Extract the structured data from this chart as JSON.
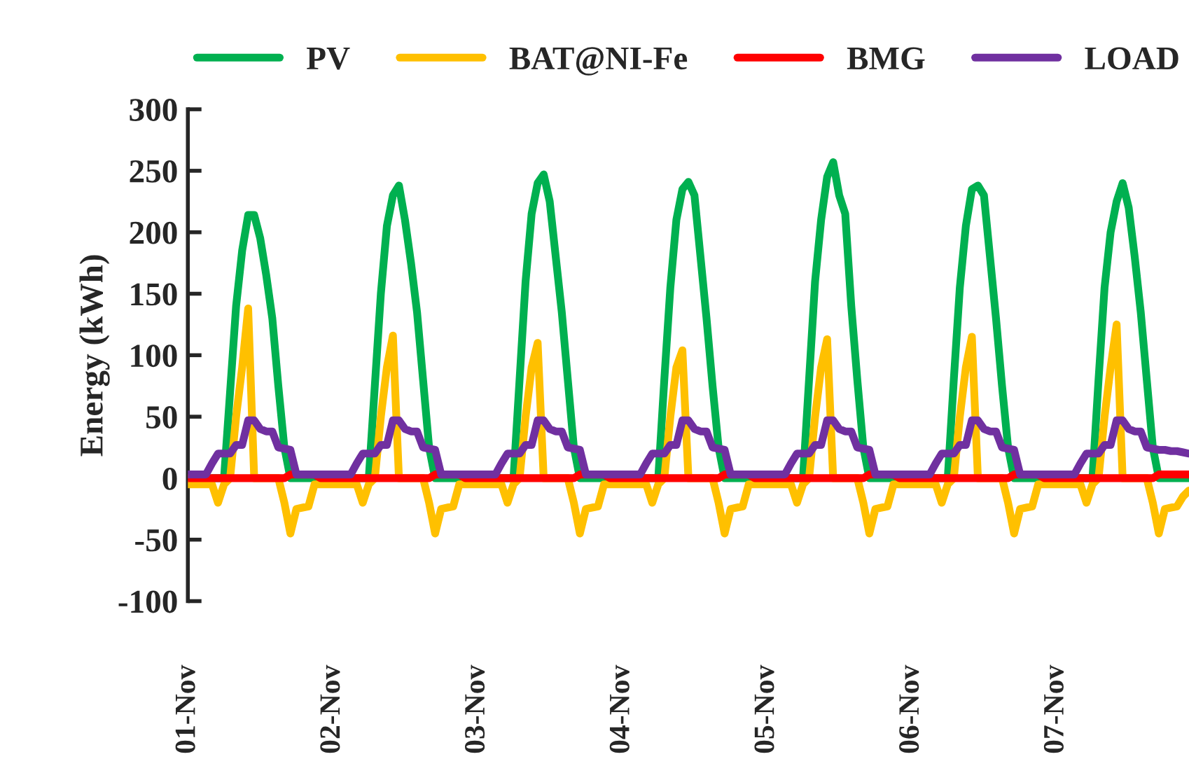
{
  "chart_data": {
    "type": "line",
    "ylabel": "Energy (kWh)",
    "ylim": [
      -100,
      300
    ],
    "yticks": [
      -100,
      -50,
      0,
      50,
      100,
      150,
      200,
      250,
      300
    ],
    "categories": [
      "01-Nov",
      null,
      null,
      null,
      null,
      null,
      null,
      null,
      null,
      null,
      null,
      null,
      null,
      null,
      null,
      null,
      null,
      null,
      null,
      null,
      null,
      null,
      null,
      null,
      "02-Nov",
      null,
      null,
      null,
      null,
      null,
      null,
      null,
      null,
      null,
      null,
      null,
      null,
      null,
      null,
      null,
      null,
      null,
      null,
      null,
      null,
      null,
      null,
      null,
      "03-Nov",
      null,
      null,
      null,
      null,
      null,
      null,
      null,
      null,
      null,
      null,
      null,
      null,
      null,
      null,
      null,
      null,
      null,
      null,
      null,
      null,
      null,
      null,
      null,
      "04-Nov",
      null,
      null,
      null,
      null,
      null,
      null,
      null,
      null,
      null,
      null,
      null,
      null,
      null,
      null,
      null,
      null,
      null,
      null,
      null,
      null,
      null,
      null,
      null,
      "05-Nov",
      null,
      null,
      null,
      null,
      null,
      null,
      null,
      null,
      null,
      null,
      null,
      null,
      null,
      null,
      null,
      null,
      null,
      null,
      null,
      null,
      null,
      null,
      null,
      "06-Nov",
      null,
      null,
      null,
      null,
      null,
      null,
      null,
      null,
      null,
      null,
      null,
      null,
      null,
      null,
      null,
      null,
      null,
      null,
      null,
      null,
      null,
      null,
      null,
      "07-Nov",
      null,
      null,
      null,
      null,
      null,
      null,
      null,
      null,
      null,
      null,
      null,
      null,
      null,
      null,
      null,
      null,
      null,
      null,
      null,
      null,
      null,
      null
    ],
    "grid": false,
    "legend": "top",
    "marker": "none",
    "line_style": "solid",
    "series": [
      {
        "name": "PV",
        "color": "#00b050",
        "values": [
          null,
          null,
          null,
          null,
          0,
          0,
          0,
          70,
          140,
          185,
          214,
          214,
          195,
          165,
          130,
          75,
          25,
          0,
          0,
          0,
          0,
          0,
          0,
          0,
          0,
          0,
          0,
          0,
          0,
          0,
          0,
          75,
          150,
          205,
          230,
          238,
          210,
          175,
          135,
          80,
          25,
          0,
          0,
          0,
          0,
          0,
          0,
          0,
          0,
          0,
          0,
          0,
          0,
          0,
          0,
          80,
          160,
          215,
          240,
          247,
          225,
          180,
          135,
          80,
          25,
          0,
          0,
          0,
          0,
          0,
          0,
          0,
          0,
          0,
          0,
          0,
          0,
          0,
          0,
          80,
          155,
          210,
          235,
          241,
          230,
          180,
          130,
          75,
          25,
          0,
          0,
          0,
          0,
          0,
          0,
          0,
          0,
          0,
          0,
          0,
          0,
          0,
          0,
          80,
          160,
          210,
          245,
          257,
          230,
          215,
          140,
          80,
          25,
          0,
          0,
          0,
          0,
          0,
          0,
          0,
          0,
          0,
          0,
          0,
          0,
          0,
          0,
          80,
          155,
          205,
          235,
          238,
          230,
          180,
          130,
          75,
          25,
          0,
          0,
          0,
          0,
          0,
          0,
          0,
          0,
          0,
          0,
          0,
          0,
          0,
          0,
          80,
          155,
          200,
          225,
          240,
          220,
          180,
          135,
          80,
          25,
          0,
          0,
          0,
          0,
          0,
          0
        ]
      },
      {
        "name": "BAT@NI-Fe",
        "color": "#ffc000",
        "values": [
          -5,
          -5,
          -5,
          -5,
          -5,
          -20,
          -5,
          0,
          50,
          90,
          138,
          0,
          0,
          0,
          0,
          0,
          -20,
          -45,
          -25,
          -24,
          -23,
          -5,
          -5,
          -5,
          -5,
          -5,
          -5,
          -5,
          -5,
          -20,
          -5,
          0,
          50,
          90,
          116,
          0,
          0,
          0,
          0,
          0,
          -20,
          -45,
          -25,
          -24,
          -23,
          -5,
          -5,
          -5,
          -5,
          -5,
          -5,
          -5,
          -5,
          -20,
          -5,
          0,
          50,
          90,
          110,
          0,
          0,
          0,
          0,
          0,
          -20,
          -45,
          -25,
          -24,
          -23,
          -5,
          -5,
          -5,
          -5,
          -5,
          -5,
          -5,
          -5,
          -20,
          -5,
          0,
          50,
          90,
          104,
          0,
          0,
          0,
          0,
          0,
          -20,
          -45,
          -25,
          -24,
          -23,
          -5,
          -5,
          -5,
          -5,
          -5,
          -5,
          -5,
          -5,
          -20,
          -5,
          0,
          50,
          90,
          113,
          0,
          0,
          0,
          0,
          0,
          -20,
          -45,
          -25,
          -24,
          -23,
          -5,
          -5,
          -5,
          -5,
          -5,
          -5,
          -5,
          -5,
          -20,
          -5,
          0,
          50,
          90,
          115,
          0,
          0,
          0,
          0,
          0,
          -20,
          -45,
          -25,
          -24,
          -23,
          -5,
          -5,
          -5,
          -5,
          -5,
          -5,
          -5,
          -5,
          -20,
          -5,
          0,
          50,
          90,
          125,
          0,
          0,
          0,
          0,
          0,
          -20,
          -45,
          -25,
          -24,
          -23,
          -15,
          -10
        ]
      },
      {
        "name": "BMG",
        "color": "#ff0000",
        "values": [
          0,
          0,
          0,
          0,
          0,
          0,
          0,
          0,
          0,
          0,
          0,
          0,
          0,
          0,
          0,
          0,
          0,
          3,
          3,
          3,
          3,
          3,
          0,
          0,
          0,
          0,
          0,
          0,
          0,
          0,
          0,
          0,
          0,
          0,
          0,
          0,
          0,
          0,
          0,
          0,
          0,
          3,
          3,
          3,
          3,
          3,
          0,
          0,
          0,
          0,
          0,
          0,
          0,
          0,
          0,
          0,
          0,
          0,
          0,
          0,
          0,
          0,
          0,
          0,
          0,
          3,
          3,
          3,
          3,
          3,
          0,
          0,
          0,
          0,
          0,
          0,
          0,
          0,
          0,
          0,
          0,
          0,
          0,
          0,
          0,
          0,
          0,
          0,
          0,
          3,
          3,
          3,
          3,
          3,
          0,
          0,
          0,
          0,
          0,
          0,
          0,
          0,
          0,
          0,
          0,
          0,
          0,
          0,
          0,
          0,
          0,
          0,
          0,
          3,
          3,
          3,
          3,
          3,
          0,
          0,
          0,
          0,
          0,
          0,
          0,
          0,
          0,
          0,
          0,
          0,
          0,
          0,
          0,
          0,
          0,
          0,
          0,
          3,
          3,
          3,
          3,
          3,
          0,
          0,
          0,
          0,
          0,
          0,
          0,
          0,
          0,
          0,
          0,
          0,
          0,
          0,
          0,
          0,
          0,
          0,
          0,
          3,
          3,
          3,
          3,
          3,
          3
        ]
      },
      {
        "name": "LOAD",
        "color": "#7030a0",
        "values": [
          3,
          3,
          3,
          3,
          12,
          20,
          20,
          20,
          27,
          27,
          47,
          47,
          40,
          38,
          38,
          25,
          24,
          23,
          3,
          3,
          3,
          3,
          3,
          3,
          3,
          3,
          3,
          3,
          12,
          20,
          20,
          20,
          27,
          27,
          47,
          47,
          40,
          38,
          38,
          25,
          24,
          23,
          3,
          3,
          3,
          3,
          3,
          3,
          3,
          3,
          3,
          3,
          12,
          20,
          20,
          20,
          27,
          27,
          47,
          47,
          40,
          38,
          38,
          25,
          24,
          23,
          3,
          3,
          3,
          3,
          3,
          3,
          3,
          3,
          3,
          3,
          12,
          20,
          20,
          20,
          27,
          27,
          47,
          47,
          40,
          38,
          38,
          25,
          24,
          23,
          3,
          3,
          3,
          3,
          3,
          3,
          3,
          3,
          3,
          3,
          12,
          20,
          20,
          20,
          27,
          27,
          47,
          47,
          40,
          38,
          38,
          25,
          24,
          23,
          3,
          3,
          3,
          3,
          3,
          3,
          3,
          3,
          3,
          3,
          12,
          20,
          20,
          20,
          27,
          27,
          47,
          47,
          40,
          38,
          38,
          25,
          24,
          23,
          3,
          3,
          3,
          3,
          3,
          3,
          3,
          3,
          3,
          3,
          12,
          20,
          20,
          20,
          27,
          27,
          47,
          47,
          40,
          38,
          38,
          25,
          24,
          23,
          23,
          22,
          22,
          21,
          20
        ]
      }
    ]
  }
}
